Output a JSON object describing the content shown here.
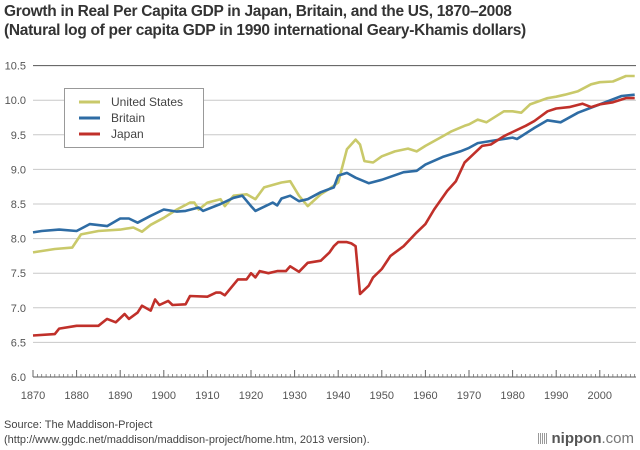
{
  "chart_data": {
    "type": "line",
    "title": "Growth in Real Per Capita GDP in Japan, Britain, and the US, 1870–2008",
    "subtitle": "(Natural log of per capita GDP in 1990 international Geary-Khamis dollars)",
    "xlabel": "",
    "ylabel": "",
    "xlim": [
      1870,
      2008
    ],
    "ylim": [
      6.0,
      10.5
    ],
    "x_ticks": [
      "1870",
      "1880",
      "1890",
      "1900",
      "1910",
      "1920",
      "1930",
      "1940",
      "1950",
      "1960",
      "1970",
      "1980",
      "1990",
      "2000"
    ],
    "y_ticks": [
      "6.0",
      "6.5",
      "7.0",
      "7.5",
      "8.0",
      "8.5",
      "9.0",
      "9.5",
      "10.0",
      "10.5"
    ],
    "grid": true,
    "legend_position": "top-left",
    "series": [
      {
        "name": "United States",
        "color": "#c9c96a",
        "x": [
          1870,
          1875,
          1879,
          1881,
          1885,
          1890,
          1893,
          1895,
          1897,
          1900,
          1903,
          1906,
          1907,
          1908,
          1910,
          1913,
          1914,
          1916,
          1919,
          1921,
          1923,
          1927,
          1929,
          1931,
          1933,
          1936,
          1938,
          1940,
          1942,
          1944,
          1945,
          1946,
          1948,
          1950,
          1953,
          1956,
          1958,
          1960,
          1964,
          1966,
          1969,
          1970,
          1972,
          1974,
          1978,
          1980,
          1982,
          1984,
          1988,
          1990,
          1992,
          1995,
          1998,
          2000,
          2003,
          2006,
          2008
        ],
        "y": [
          7.8,
          7.85,
          7.87,
          8.06,
          8.11,
          8.13,
          8.16,
          8.1,
          8.2,
          8.3,
          8.42,
          8.52,
          8.52,
          8.42,
          8.52,
          8.57,
          8.47,
          8.62,
          8.64,
          8.57,
          8.74,
          8.81,
          8.83,
          8.62,
          8.47,
          8.64,
          8.72,
          8.81,
          9.29,
          9.43,
          9.36,
          9.12,
          9.1,
          9.19,
          9.26,
          9.3,
          9.26,
          9.34,
          9.48,
          9.55,
          9.63,
          9.65,
          9.72,
          9.68,
          9.84,
          9.84,
          9.82,
          9.94,
          10.03,
          10.05,
          10.08,
          10.13,
          10.23,
          10.26,
          10.27,
          10.35,
          10.35
        ]
      },
      {
        "name": "Britain",
        "color": "#2e6ca4",
        "x": [
          1870,
          1872,
          1876,
          1880,
          1883,
          1887,
          1890,
          1892,
          1894,
          1897,
          1900,
          1903,
          1905,
          1908,
          1909,
          1913,
          1916,
          1918,
          1920,
          1921,
          1925,
          1926,
          1927,
          1929,
          1931,
          1933,
          1936,
          1939,
          1940,
          1942,
          1944,
          1947,
          1950,
          1955,
          1958,
          1960,
          1964,
          1968,
          1970,
          1972,
          1975,
          1980,
          1981,
          1985,
          1988,
          1991,
          1995,
          2000,
          2005,
          2008
        ],
        "y": [
          8.09,
          8.11,
          8.13,
          8.11,
          8.21,
          8.18,
          8.29,
          8.29,
          8.23,
          8.33,
          8.42,
          8.39,
          8.4,
          8.45,
          8.4,
          8.5,
          8.59,
          8.62,
          8.47,
          8.4,
          8.52,
          8.48,
          8.58,
          8.62,
          8.54,
          8.57,
          8.67,
          8.74,
          8.91,
          8.95,
          8.88,
          8.8,
          8.85,
          8.96,
          8.98,
          9.07,
          9.18,
          9.26,
          9.31,
          9.38,
          9.41,
          9.46,
          9.44,
          9.6,
          9.71,
          9.68,
          9.82,
          9.94,
          10.06,
          10.08
        ]
      },
      {
        "name": "Japan",
        "color": "#c0302a",
        "x": [
          1870,
          1875,
          1876,
          1880,
          1885,
          1887,
          1889,
          1891,
          1892,
          1894,
          1895,
          1897,
          1898,
          1899,
          1901,
          1902,
          1905,
          1906,
          1910,
          1912,
          1913,
          1914,
          1917,
          1919,
          1920,
          1921,
          1922,
          1924,
          1926,
          1928,
          1929,
          1931,
          1933,
          1936,
          1938,
          1939,
          1940,
          1942,
          1943,
          1944,
          1945,
          1947,
          1948,
          1950,
          1952,
          1955,
          1958,
          1960,
          1962,
          1965,
          1967,
          1969,
          1971,
          1973,
          1975,
          1978,
          1980,
          1983,
          1985,
          1988,
          1990,
          1993,
          1996,
          1998,
          2000,
          2003,
          2006,
          2008
        ],
        "y": [
          6.6,
          6.62,
          6.7,
          6.74,
          6.74,
          6.84,
          6.79,
          6.91,
          6.84,
          6.93,
          7.03,
          6.96,
          7.12,
          7.04,
          7.1,
          7.04,
          7.05,
          7.17,
          7.16,
          7.22,
          7.22,
          7.18,
          7.41,
          7.41,
          7.5,
          7.44,
          7.53,
          7.5,
          7.53,
          7.53,
          7.6,
          7.52,
          7.65,
          7.68,
          7.8,
          7.89,
          7.95,
          7.95,
          7.93,
          7.89,
          7.2,
          7.32,
          7.44,
          7.56,
          7.75,
          7.89,
          8.09,
          8.21,
          8.42,
          8.69,
          8.83,
          9.1,
          9.22,
          9.34,
          9.36,
          9.48,
          9.54,
          9.63,
          9.7,
          9.84,
          9.88,
          9.9,
          9.95,
          9.9,
          9.94,
          9.97,
          10.03,
          10.03
        ]
      }
    ]
  },
  "footer": {
    "source_line1": "Source: The Maddison-Project",
    "source_line2": "(http://www.ggdc.net/maddison/maddison-project/home.htm, 2013 version).",
    "logo_main": "nippon",
    "logo_suffix": ".com"
  }
}
